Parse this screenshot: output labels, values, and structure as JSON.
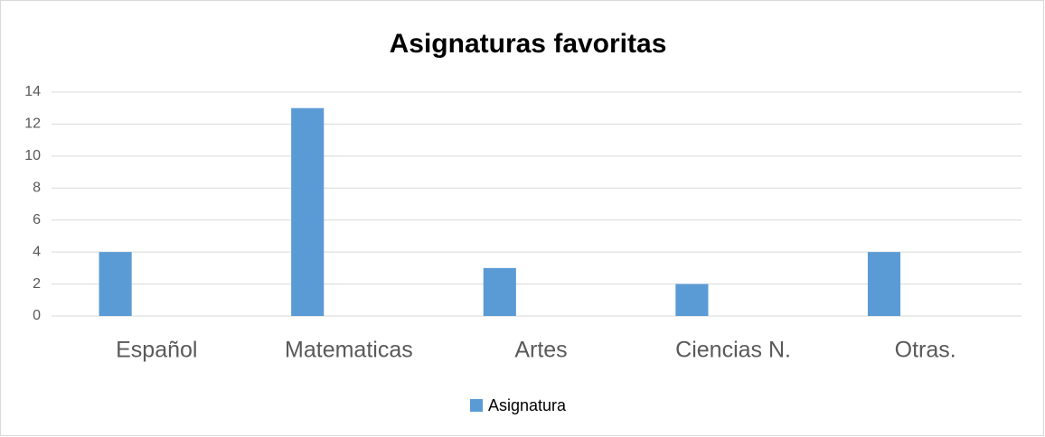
{
  "chart_data": {
    "type": "bar",
    "title": "Asignaturas favoritas",
    "categories": [
      "Español",
      "Matematicas",
      "Artes",
      "Ciencias N.",
      "Otras."
    ],
    "series": [
      {
        "name": "Asignatura",
        "color": "#5b9bd5",
        "values": [
          4,
          13,
          3,
          2,
          4
        ]
      }
    ],
    "ylim": [
      0,
      14
    ],
    "yticks": [
      0,
      2,
      4,
      6,
      8,
      10,
      12,
      14
    ],
    "grid": true,
    "legend": "bottom"
  }
}
